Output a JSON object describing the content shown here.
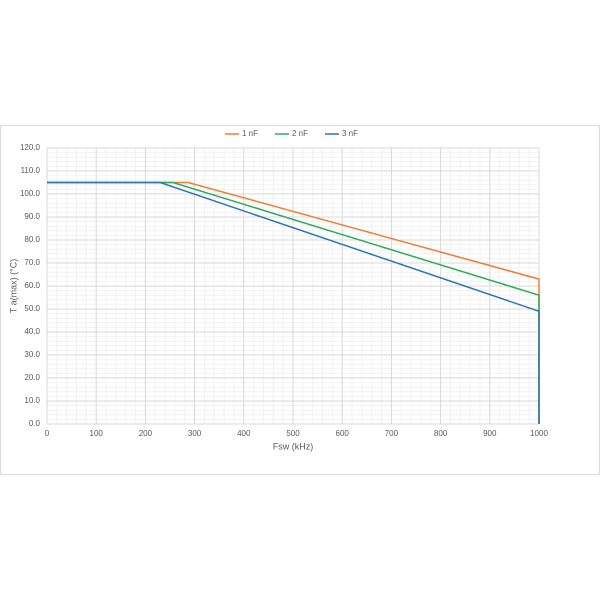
{
  "chart_data": {
    "type": "line",
    "xlabel": "Fsw (kHz)",
    "ylabel": "T a(max)  (°C)",
    "series": [
      {
        "name": "1 nF",
        "color": "#ed7d31",
        "x": [
          0,
          287,
          1000,
          1000
        ],
        "values": [
          105,
          105,
          63,
          0
        ]
      },
      {
        "name": "2 nF",
        "color": "#2eaa5c",
        "x": [
          0,
          256,
          1000,
          1000
        ],
        "values": [
          105,
          105,
          56,
          0
        ]
      },
      {
        "name": "3 nF",
        "color": "#2e75b6",
        "x": [
          0,
          230,
          1000,
          1000
        ],
        "values": [
          105,
          105,
          49,
          0
        ]
      }
    ],
    "xlim": [
      0,
      1000
    ],
    "xticks": [
      0,
      100,
      200,
      300,
      400,
      500,
      600,
      700,
      800,
      900,
      1000
    ],
    "ylim": [
      0,
      120
    ],
    "yticks": [
      {
        "value": 0,
        "label": "0.0"
      },
      {
        "value": 10,
        "label": "10.0"
      },
      {
        "value": 20,
        "label": "20.0"
      },
      {
        "value": 30,
        "label": "30.0"
      },
      {
        "value": 40,
        "label": "40.0"
      },
      {
        "value": 50,
        "label": "50.0"
      },
      {
        "value": 60,
        "label": "60.0"
      },
      {
        "value": 70,
        "label": "70.0"
      },
      {
        "value": 80,
        "label": "80.0"
      },
      {
        "value": 90,
        "label": "90.0"
      },
      {
        "value": 100,
        "label": "100.0"
      },
      {
        "value": 110,
        "label": "110.0"
      },
      {
        "value": 120,
        "label": "120.0"
      }
    ],
    "grid": true,
    "minor_divisions": 5,
    "legend": "top"
  }
}
